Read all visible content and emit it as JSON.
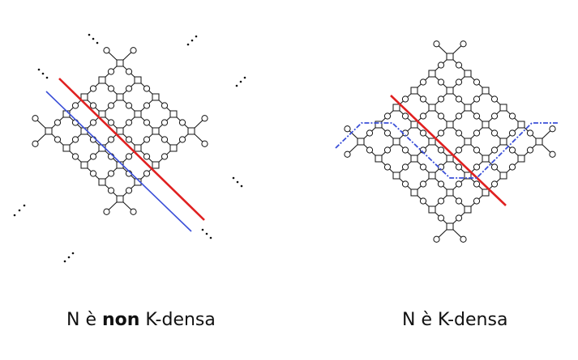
{
  "captions": {
    "left": {
      "before": "N è ",
      "emphasis": "non",
      "after": " K-densa"
    },
    "right": {
      "text": "N è K-densa"
    }
  },
  "colors": {
    "red_line": "#e02020",
    "blue_line": "#3a4fd8",
    "stroke": "#111111"
  },
  "icons": {
    "transition": "square-node-icon",
    "place": "circle-node-icon",
    "continuation": "ellipsis-dots-icon"
  }
}
